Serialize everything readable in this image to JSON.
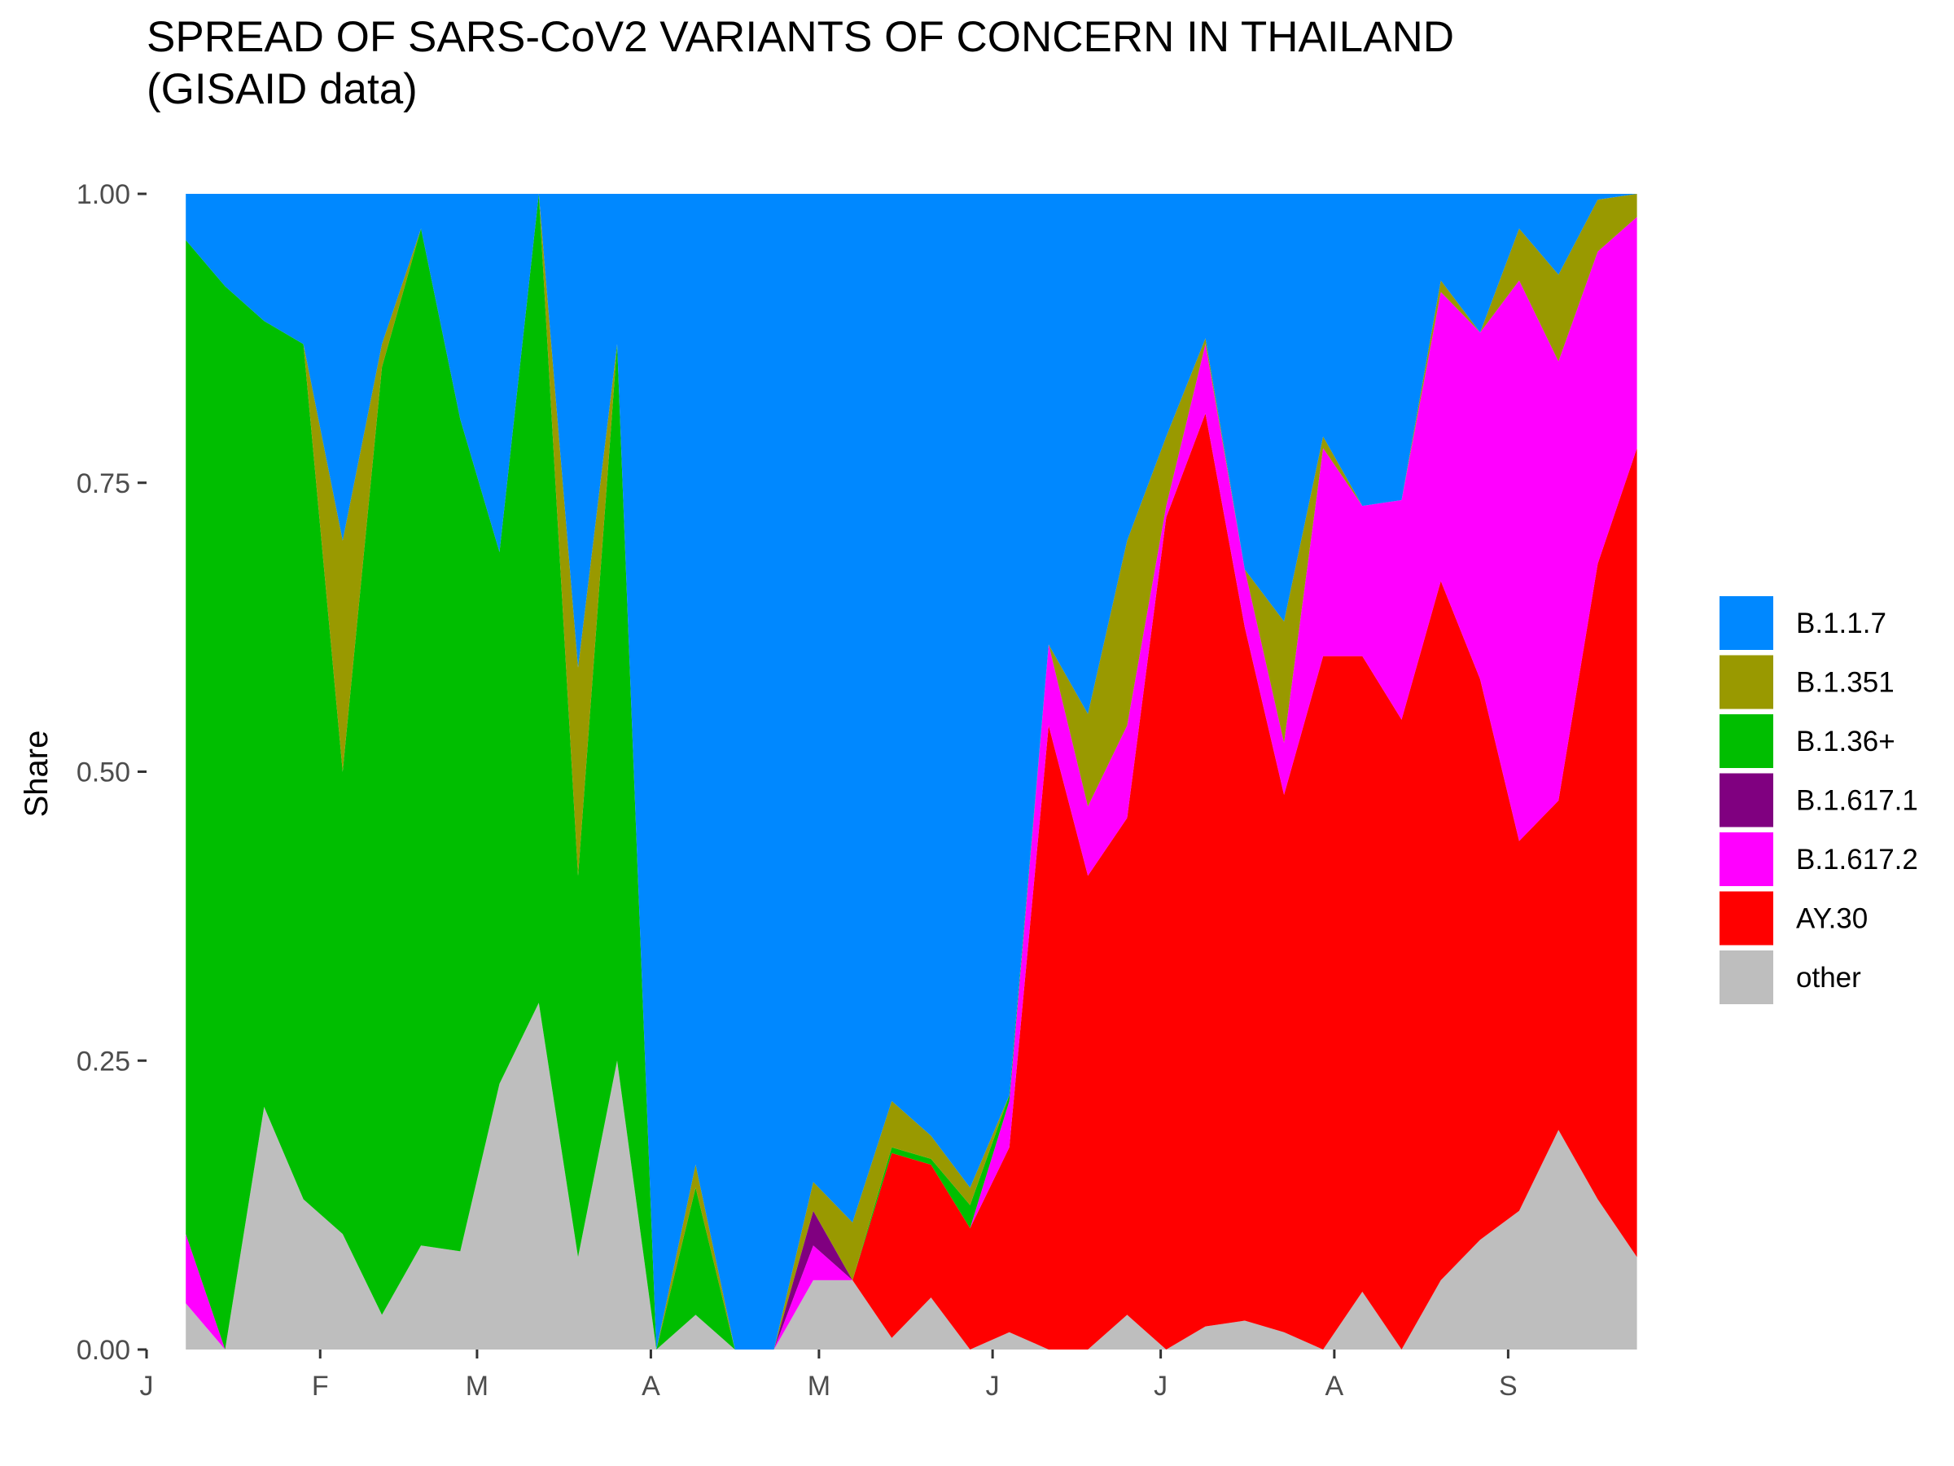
{
  "chart_data": {
    "type": "area",
    "stacked": true,
    "normalized": true,
    "title": "SPREAD OF SARS-CoV2 VARIANTS OF CONCERN IN THAILAND\n(GISAID data)",
    "title_lines": [
      "SPREAD OF SARS-CoV2 VARIANTS OF CONCERN IN THAILAND",
      "(GISAID data)"
    ],
    "xlabel": "",
    "ylabel": "Share",
    "ylim": [
      0,
      1
    ],
    "xlim": [
      2021.0,
      2021.7397
    ],
    "yticks": [
      {
        "value": 0,
        "label": "0.00"
      },
      {
        "value": 0.25,
        "label": "0.25"
      },
      {
        "value": 0.5,
        "label": "0.50"
      },
      {
        "value": 0.75,
        "label": "0.75"
      },
      {
        "value": 1,
        "label": "1.00"
      }
    ],
    "xticks": [
      {
        "value": 2021.0,
        "label": "J"
      },
      {
        "value": 2021.0849,
        "label": "F"
      },
      {
        "value": 2021.1616,
        "label": "M"
      },
      {
        "value": 2021.2466,
        "label": "A"
      },
      {
        "value": 2021.3288,
        "label": "M"
      },
      {
        "value": 2021.4137,
        "label": "J"
      },
      {
        "value": 2021.4959,
        "label": "J"
      },
      {
        "value": 2021.5808,
        "label": "A"
      },
      {
        "value": 2021.6658,
        "label": "S"
      }
    ],
    "grid": false,
    "legend_position": "right",
    "x": [
      2021.0192,
      2021.0384,
      2021.0575,
      2021.0767,
      2021.0959,
      2021.1151,
      2021.1342,
      2021.1534,
      2021.1726,
      2021.1918,
      2021.211,
      2021.2301,
      2021.2493,
      2021.2685,
      2021.2877,
      2021.3068,
      2021.326,
      2021.3452,
      2021.3644,
      2021.3836,
      2021.4027,
      2021.4219,
      2021.4411,
      2021.4603,
      2021.4795,
      2021.4986,
      2021.5178,
      2021.537,
      2021.5562,
      2021.5753,
      2021.5945,
      2021.6137,
      2021.6329,
      2021.6521,
      2021.6712,
      2021.6904,
      2021.7096,
      2021.7288
    ],
    "series": [
      {
        "name": "other",
        "color": "#BEBEBE",
        "values": [
          0.04,
          0,
          0.21,
          0.13,
          0.1,
          0.03,
          0.09,
          0.085,
          0.23,
          0.3,
          0.08,
          0.25,
          0,
          0.03,
          0,
          0,
          0.06,
          0.06,
          0.01,
          0.045,
          0,
          0.015,
          0,
          0,
          0.03,
          0,
          0.02,
          0.025,
          0.015,
          0,
          0.05,
          0,
          0.06,
          0.095,
          0.12,
          0.19,
          0.13,
          0.08
        ]
      },
      {
        "name": "AY.30",
        "color": "#FF0000",
        "values": [
          0,
          0,
          0,
          0,
          0,
          0,
          0,
          0,
          0,
          0,
          0,
          0,
          0,
          0,
          0,
          0,
          0,
          0,
          0.16,
          0.115,
          0.105,
          0.16,
          0.54,
          0.41,
          0.43,
          0.72,
          0.79,
          0.6,
          0.465,
          0.6,
          0.55,
          0.545,
          0.605,
          0.485,
          0.32,
          0.285,
          0.55,
          0.7
        ]
      },
      {
        "name": "B.1.617.2",
        "color": "#FF00FF",
        "values": [
          0.06,
          0,
          0,
          0,
          0,
          0,
          0,
          0,
          0,
          0,
          0,
          0,
          0,
          0,
          0,
          0,
          0.03,
          0,
          0,
          0,
          0,
          0.04,
          0.07,
          0.06,
          0.08,
          0.01,
          0.06,
          0.05,
          0.045,
          0.18,
          0.13,
          0.19,
          0.25,
          0.3,
          0.485,
          0.38,
          0.27,
          0.2
        ]
      },
      {
        "name": "B.1.617.1",
        "color": "#800080",
        "values": [
          0,
          0,
          0,
          0,
          0,
          0,
          0,
          0,
          0,
          0,
          0,
          0,
          0,
          0,
          0,
          0,
          0.03,
          0,
          0,
          0,
          0,
          0,
          0,
          0,
          0,
          0,
          0,
          0,
          0,
          0,
          0,
          0,
          0,
          0,
          0,
          0,
          0,
          0
        ]
      },
      {
        "name": "B.1.36+",
        "color": "#00BE00",
        "values": [
          0.86,
          0.92,
          0.68,
          0.74,
          0.4,
          0.82,
          0.88,
          0.72,
          0.46,
          0.7,
          0.33,
          0.62,
          0,
          0.11,
          0,
          0,
          0,
          0,
          0.005,
          0.005,
          0.02,
          0.005,
          0,
          0,
          0,
          0,
          0,
          0,
          0,
          0,
          0,
          0,
          0,
          0,
          0,
          0,
          0,
          0
        ]
      },
      {
        "name": "B.1.351",
        "color": "#999900",
        "values": [
          0,
          0,
          0,
          0,
          0.2,
          0.02,
          0,
          0,
          0,
          0,
          0.18,
          0,
          0,
          0.02,
          0,
          0,
          0.025,
          0.05,
          0.04,
          0.02,
          0.015,
          0,
          0,
          0.08,
          0.16,
          0.06,
          0.005,
          0,
          0.105,
          0.01,
          0,
          0,
          0.01,
          0,
          0.045,
          0.075,
          0.045,
          0.02
        ]
      },
      {
        "name": "B.1.1.7",
        "color": "#0088FF",
        "values": [
          0.04,
          0.08,
          0.11,
          0.13,
          0.3,
          0.13,
          0.03,
          0.195,
          0.31,
          0,
          0.41,
          0.13,
          1,
          0.84,
          1,
          1,
          0.855,
          0.89,
          0.785,
          0.815,
          0.86,
          0.78,
          0.39,
          0.45,
          0.3,
          0.21,
          0.125,
          0.325,
          0.37,
          0.21,
          0.27,
          0.265,
          0.075,
          0.12,
          0.03,
          0.07,
          0.005,
          0
        ]
      }
    ],
    "legend_order": [
      "B.1.1.7",
      "B.1.351",
      "B.1.36+",
      "B.1.617.1",
      "B.1.617.2",
      "AY.30",
      "other"
    ]
  }
}
